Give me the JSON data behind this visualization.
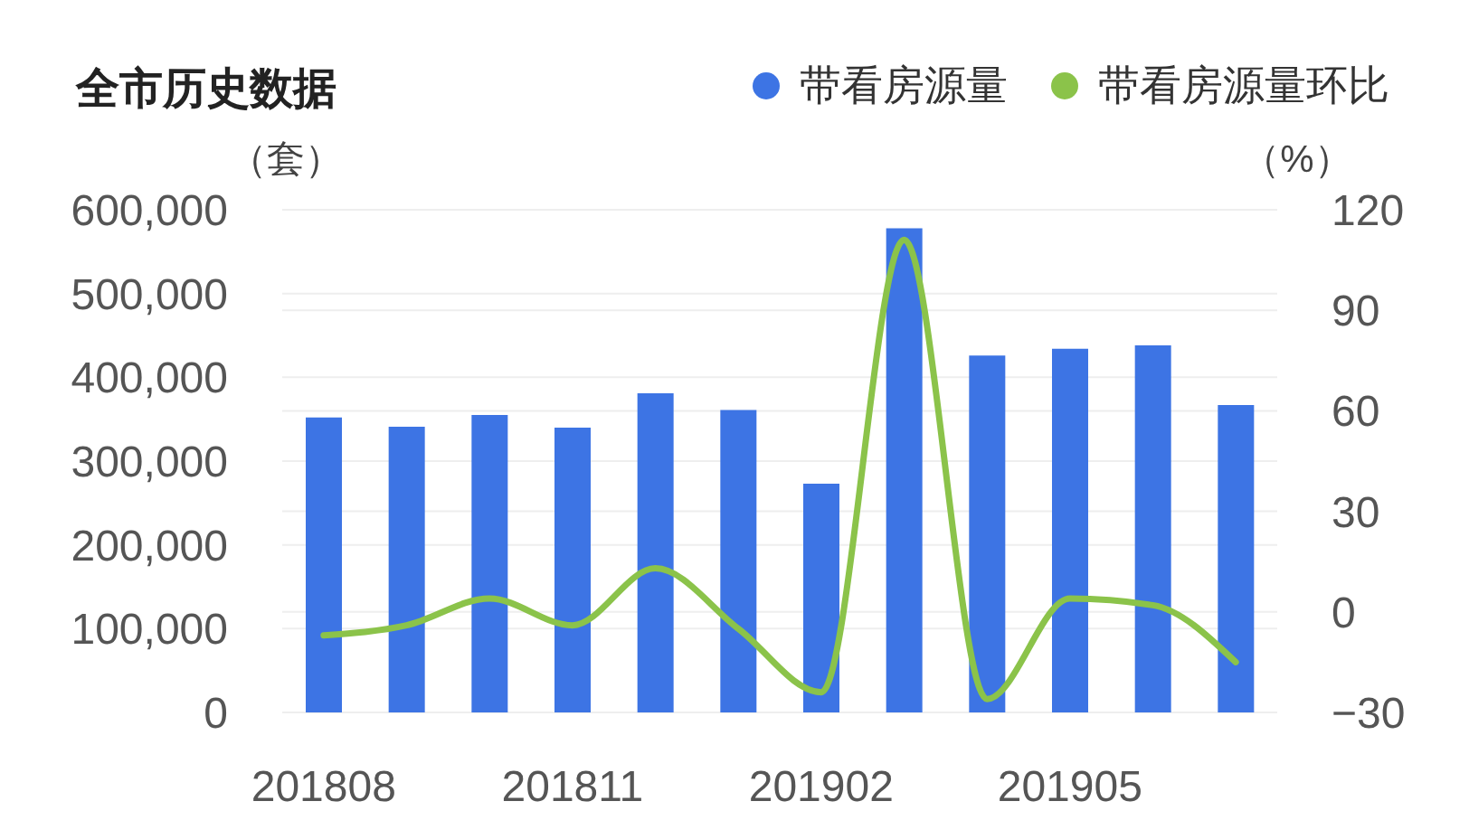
{
  "chart_data": {
    "type": "bar",
    "title": "全市历史数据",
    "ylabel": "（套）",
    "y2label": "（%）",
    "categories": [
      "201808",
      null,
      null,
      "201811",
      null,
      null,
      "201902",
      null,
      null,
      "201905",
      null,
      null
    ],
    "series": [
      {
        "name": "带看房源量",
        "color": "#3d74e4",
        "values": [
          352000,
          341000,
          355000,
          340000,
          381000,
          361000,
          273000,
          578000,
          426000,
          434000,
          438000,
          367000
        ]
      },
      {
        "name": "带看房源量环比",
        "type": "line",
        "axis": "y2",
        "color": "#8bc34a",
        "values": [
          -7,
          -4,
          4,
          -4,
          13,
          -5,
          -24,
          111,
          -26,
          4,
          2,
          -15
        ]
      }
    ],
    "ylim": [
      0,
      600000
    ],
    "yticks": [
      0,
      {
        "value": 100000,
        "label": "100,000"
      },
      {
        "value": 200000,
        "label": "200,000"
      },
      {
        "value": 300000,
        "label": "300,000"
      },
      {
        "value": 400000,
        "label": "400,000"
      },
      {
        "value": 500000,
        "label": "500,000"
      },
      {
        "value": 600000,
        "label": "600,000"
      }
    ],
    "y2lim": [
      -30,
      120
    ],
    "y2ticks": [
      {
        "value": -30,
        "label": "−30"
      },
      0,
      30,
      60,
      90,
      120
    ],
    "grid": "y",
    "legend": "top right"
  }
}
